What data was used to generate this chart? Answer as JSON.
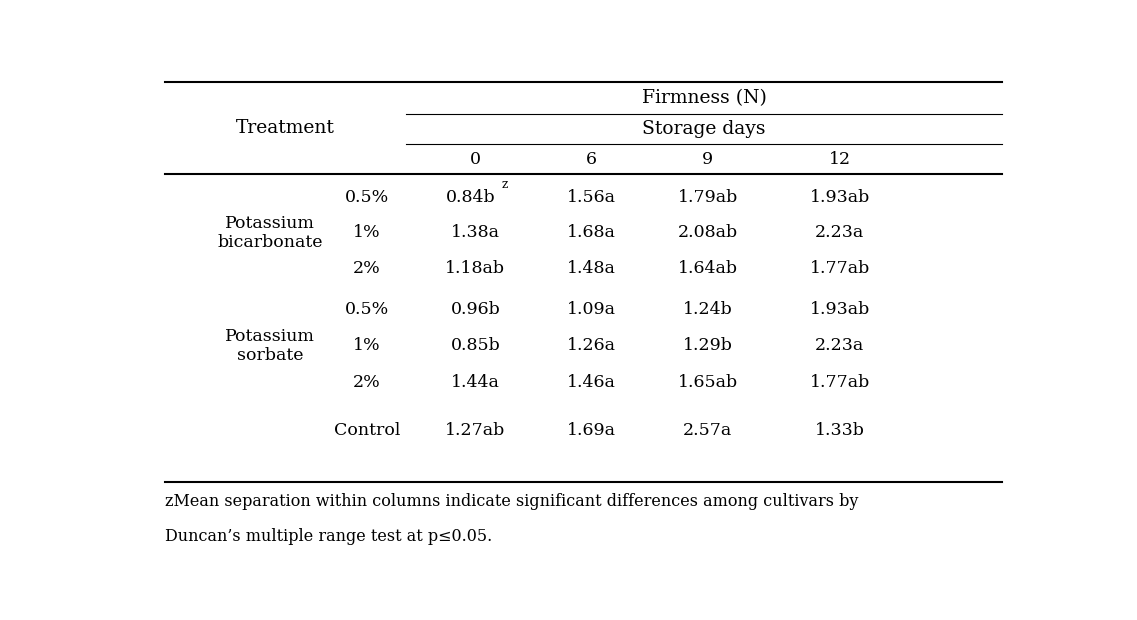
{
  "title1": "Firmness (N)",
  "title2": "Storage days",
  "col_headers": [
    "0",
    "6",
    "9",
    "12"
  ],
  "treatment_col2": [
    "0.5%",
    "1%",
    "2%",
    "0.5%",
    "1%",
    "2%",
    "Control"
  ],
  "data": [
    [
      "0.84b",
      "1.56a",
      "1.79ab",
      "1.93ab"
    ],
    [
      "1.38a",
      "1.68a",
      "2.08ab",
      "2.23a"
    ],
    [
      "1.18ab",
      "1.48a",
      "1.64ab",
      "1.77ab"
    ],
    [
      "0.96b",
      "1.09a",
      "1.24b",
      "1.93ab"
    ],
    [
      "0.85b",
      "1.26a",
      "1.29b",
      "2.23a"
    ],
    [
      "1.44a",
      "1.46a",
      "1.65ab",
      "1.77ab"
    ],
    [
      "1.27ab",
      "1.69a",
      "2.57a",
      "1.33b"
    ]
  ],
  "data_row0_col0_has_superscript_z": true,
  "footnote_line1": "zMean separation within columns indicate significant differences among cultivars by",
  "footnote_line2": "Duncan’s multiple range test at p≤0.05.",
  "bg_color": "#ffffff",
  "text_color": "#000000",
  "line_color": "#000000",
  "group_labels": [
    {
      "text": "Potassium\nbicarbonate",
      "rows": [
        0,
        1,
        2
      ]
    },
    {
      "text": "Potassium\nsorbate",
      "rows": [
        3,
        4,
        5
      ]
    }
  ],
  "font_size": 12.5,
  "header_font_size": 13.5,
  "footnote_font_size": 11.5
}
